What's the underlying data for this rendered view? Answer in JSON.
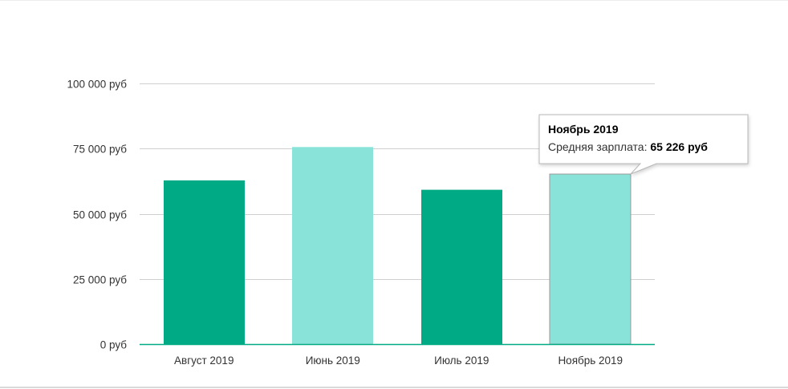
{
  "chart_data": {
    "type": "bar",
    "categories": [
      "Август 2019",
      "Июнь 2019",
      "Июль 2019",
      "Ноябрь 2019"
    ],
    "series": [
      {
        "values": [
          62800,
          75600,
          59200,
          65226
        ]
      }
    ],
    "y_ticks": [
      "0 руб",
      "25 000 руб",
      "50 000 руб",
      "75 000 руб",
      "100 000 руб"
    ],
    "ylim": [
      0,
      100000
    ],
    "grid": true,
    "bar_colors": [
      "#00aa85",
      "#8ae3d9",
      "#00aa85",
      "#8ae3d9"
    ],
    "axis_color": "#00aa85",
    "grid_color": "#d0d0d0"
  },
  "tooltip": {
    "title": "Ноябрь 2019",
    "label": "Средняя зарплата: ",
    "value": "65 226 руб",
    "category_index": 3
  }
}
